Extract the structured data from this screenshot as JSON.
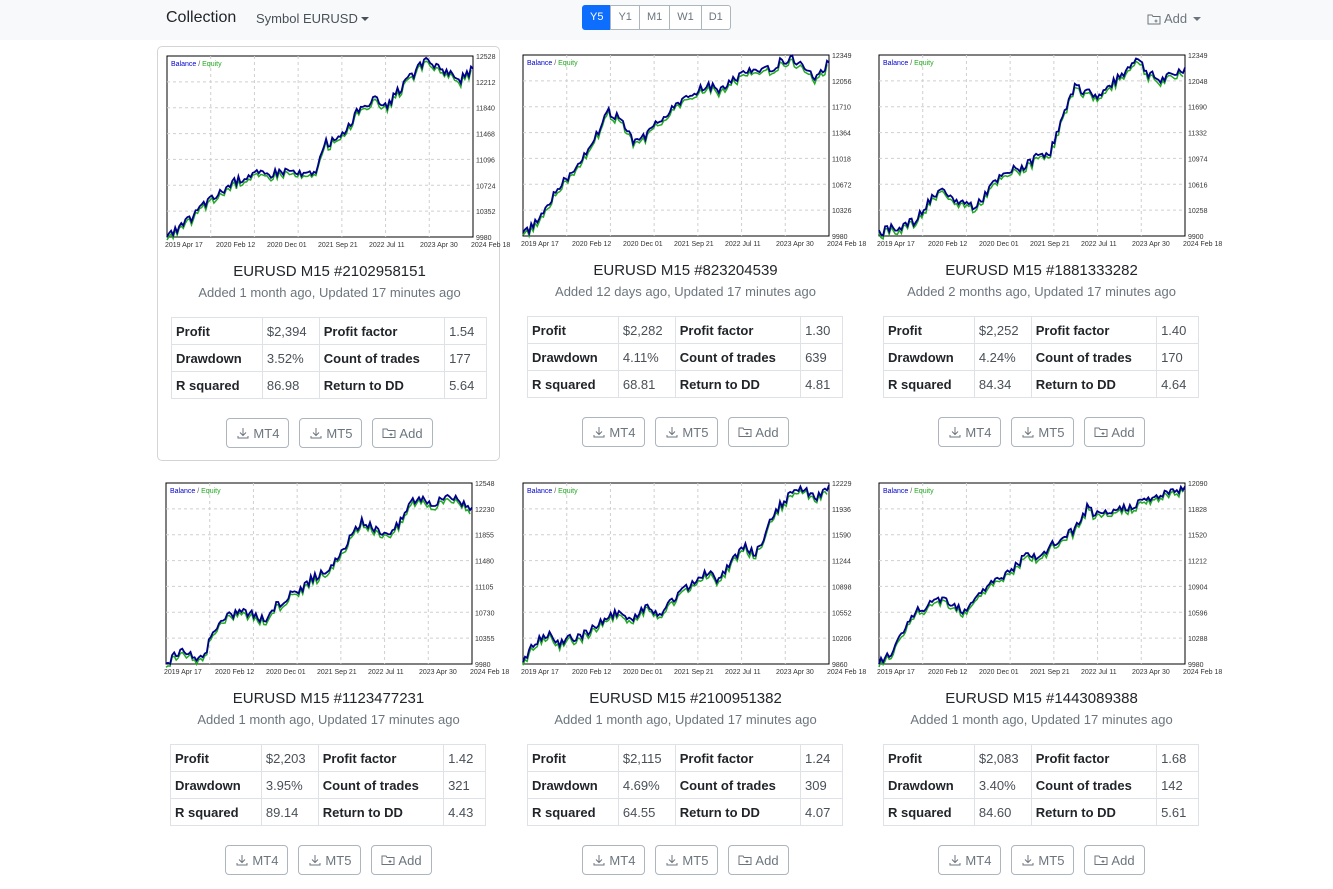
{
  "navbar": {
    "brand": "Collection",
    "symbol_menu": "Symbol EURUSD",
    "timeframes": [
      {
        "label": "Y5",
        "active": true
      },
      {
        "label": "Y1",
        "active": false
      },
      {
        "label": "M1",
        "active": false
      },
      {
        "label": "W1",
        "active": false
      },
      {
        "label": "D1",
        "active": false
      }
    ],
    "add_label": "Add"
  },
  "legend": {
    "balance": "Balance",
    "sep": " / ",
    "equity": "Equity"
  },
  "colors": {
    "accent": "#0d6efd",
    "balance_line": "#00008b",
    "equity_line": "#22aa22"
  },
  "buttons": {
    "mt4": "MT4",
    "mt5": "MT5",
    "add": "Add"
  },
  "stat_labels": {
    "profit": "Profit",
    "profit_factor": "Profit factor",
    "drawdown": "Drawdown",
    "count_of_trades": "Count of trades",
    "r_squared": "R squared",
    "return_to_dd": "Return to DD"
  },
  "x_labels": [
    "2019 Apr 17",
    "2020 Feb 12",
    "2020 Dec 01",
    "2021 Sep 21",
    "2022 Jul 11",
    "2023 Apr 30",
    "2024 Feb 18"
  ],
  "strategies": [
    {
      "title": "EURUSD M15 #2102958151",
      "subtitle": "Added 1 month ago, Updated 17 minutes ago",
      "profit": "$2,394",
      "profit_factor": "1.54",
      "drawdown": "3.52%",
      "count_of_trades": "177",
      "r_squared": "86.98",
      "return_to_dd": "5.64",
      "y_labels": [
        "12528",
        "12212",
        "11840",
        "11468",
        "11096",
        "10724",
        "10352",
        "9980"
      ],
      "chart_data": {
        "type": "line",
        "ylim": [
          9980,
          12528
        ],
        "series": [
          {
            "name": "Balance",
            "values": [
              9980,
              10100,
              10250,
              10450,
              10550,
              10700,
              10800,
              10880,
              10850,
              10900,
              10920,
              10850,
              10870,
              11300,
              11350,
              11600,
              11850,
              11900,
              11850,
              12050,
              12250,
              12450,
              12400,
              12300,
              12200,
              12350
            ]
          }
        ]
      }
    },
    {
      "title": "EURUSD M15 #823204539",
      "subtitle": "Added 12 days ago, Updated 17 minutes ago",
      "profit": "$2,282",
      "profit_factor": "1.30",
      "drawdown": "4.11%",
      "count_of_trades": "639",
      "r_squared": "68.81",
      "return_to_dd": "4.81",
      "y_labels": [
        "12349",
        "12056",
        "11710",
        "11364",
        "11018",
        "10672",
        "10326",
        "9980"
      ],
      "chart_data": {
        "type": "line",
        "ylim": [
          9980,
          12349
        ],
        "series": [
          {
            "name": "Balance",
            "values": [
              9980,
              10150,
              10400,
              10650,
              10800,
              11050,
              11300,
              11600,
              11500,
              11200,
              11300,
              11500,
              11600,
              11750,
              11850,
              11950,
              11900,
              12000,
              12100,
              12200,
              12150,
              12250,
              12300,
              12200,
              12050,
              12250
            ]
          }
        ]
      }
    },
    {
      "title": "EURUSD M15 #1881333282",
      "subtitle": "Added 2 months ago, Updated 17 minutes ago",
      "profit": "$2,252",
      "profit_factor": "1.40",
      "drawdown": "4.24%",
      "count_of_trades": "170",
      "r_squared": "84.34",
      "return_to_dd": "4.64",
      "y_labels": [
        "12349",
        "12048",
        "11690",
        "11332",
        "10974",
        "10616",
        "10258",
        "9900"
      ],
      "chart_data": {
        "type": "line",
        "ylim": [
          9900,
          12349
        ],
        "series": [
          {
            "name": "Balance",
            "values": [
              9950,
              10000,
              10050,
              10100,
              10350,
              10500,
              10400,
              10350,
              10300,
              10550,
              10700,
              10800,
              10850,
              11000,
              11050,
              11500,
              11900,
              11850,
              11800,
              11950,
              12100,
              12330,
              12100,
              12000,
              12080,
              12180
            ]
          }
        ]
      }
    },
    {
      "title": "EURUSD M15 #1123477231",
      "subtitle": "Added 1 month ago, Updated 17 minutes ago",
      "profit": "$2,203",
      "profit_factor": "1.42",
      "drawdown": "3.95%",
      "count_of_trades": "321",
      "r_squared": "89.14",
      "return_to_dd": "4.43",
      "y_labels": [
        "12548",
        "12230",
        "11855",
        "11480",
        "11105",
        "10730",
        "10355",
        "9980"
      ],
      "chart_data": {
        "type": "line",
        "ylim": [
          9980,
          12548
        ],
        "series": [
          {
            "name": "Balance",
            "values": [
              9980,
              10150,
              10100,
              10050,
              10500,
              10650,
              10750,
              10700,
              10600,
              10800,
              10950,
              11050,
              11200,
              11300,
              11450,
              11750,
              12000,
              11900,
              11850,
              11950,
              12300,
              12350,
              12250,
              12400,
              12300,
              12200
            ]
          }
        ]
      }
    },
    {
      "title": "EURUSD M15 #2100951382",
      "subtitle": "Added 1 month ago, Updated 17 minutes ago",
      "profit": "$2,115",
      "profit_factor": "1.24",
      "drawdown": "4.69%",
      "count_of_trades": "309",
      "r_squared": "64.55",
      "return_to_dd": "4.07",
      "y_labels": [
        "12229",
        "11936",
        "11590",
        "11244",
        "10898",
        "10552",
        "10206",
        "9860"
      ],
      "chart_data": {
        "type": "line",
        "ylim": [
          9860,
          12229
        ],
        "series": [
          {
            "name": "Balance",
            "values": [
              9900,
              10150,
              10250,
              10150,
              10200,
              10250,
              10350,
              10500,
              10550,
              10450,
              10600,
              10500,
              10650,
              10800,
              10950,
              11050,
              10950,
              11200,
              11400,
              11300,
              11650,
              11950,
              12100,
              12150,
              12050,
              12200
            ]
          }
        ]
      }
    },
    {
      "title": "EURUSD M15 #1443089388",
      "subtitle": "Added 1 month ago, Updated 17 minutes ago",
      "profit": "$2,083",
      "profit_factor": "1.68",
      "drawdown": "3.40%",
      "count_of_trades": "142",
      "r_squared": "84.60",
      "return_to_dd": "5.61",
      "y_labels": [
        "12090",
        "11828",
        "11520",
        "11212",
        "10904",
        "10596",
        "10288",
        "9980"
      ],
      "chart_data": {
        "type": "line",
        "ylim": [
          9980,
          12090
        ],
        "series": [
          {
            "name": "Balance",
            "values": [
              10000,
              10100,
              10350,
              10600,
              10650,
              10750,
              10700,
              10600,
              10800,
              10900,
              11000,
              11100,
              11250,
              11200,
              11350,
              11450,
              11550,
              11800,
              11700,
              11750,
              11800,
              11850,
              11900,
              11950,
              11980,
              12050
            ]
          }
        ]
      }
    }
  ]
}
